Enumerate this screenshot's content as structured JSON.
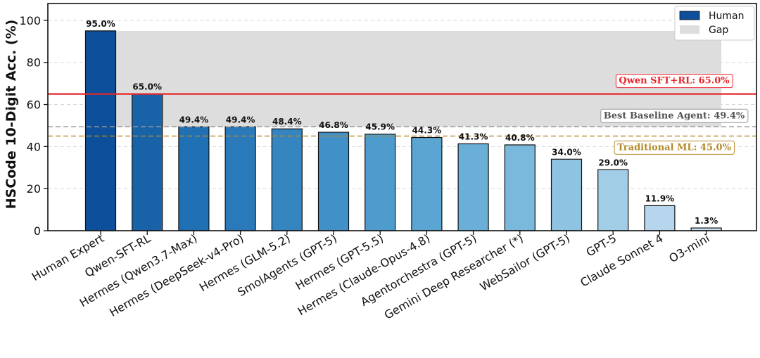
{
  "chart_data": {
    "type": "bar",
    "ylabel": "HSCode 10-Digit Acc. (%)",
    "xlabel": "",
    "ylim": [
      0,
      108
    ],
    "yticks": [
      0,
      20,
      40,
      60,
      80,
      100
    ],
    "grid": "horizontal dashed",
    "categories": [
      "Human Expert",
      "Qwen-SFT-RL",
      "Hermes (Qwen3.7-Max)",
      "Hermes (DeepSeek-v4-Pro)",
      "Hermes (GLM-5.2)",
      "SmolAgents (GPT-5)",
      "Hermes (GPT-5.5)",
      "Hermes (Claude-Opus-4.8)",
      "Agentorchestra (GPT-5)",
      "Gemini Deep Researcher (*)",
      "WebSailor (GPT-5)",
      "GPT-5",
      "Claude Sonnet 4",
      "O3-mini"
    ],
    "values": [
      95.0,
      65.0,
      49.4,
      49.4,
      48.4,
      46.8,
      45.9,
      44.3,
      41.3,
      40.8,
      34.0,
      29.0,
      11.9,
      1.3
    ],
    "value_labels": [
      "95.0%",
      "65.0%",
      "49.4%",
      "49.4%",
      "48.4%",
      "46.8%",
      "45.9%",
      "44.3%",
      "41.3%",
      "40.8%",
      "34.0%",
      "29.0%",
      "11.9%",
      "1.3%"
    ],
    "bar_colors": [
      "#0d4f9a",
      "#1862a8",
      "#2070b4",
      "#2a79ba",
      "#3585c1",
      "#4190c7",
      "#4e9ccd",
      "#5ba5d2",
      "#69afd7",
      "#7ab8dc",
      "#8fc3e2",
      "#a2cde7",
      "#b5d6ec",
      "#c8e0f1"
    ],
    "gap_band": {
      "from": 49.4,
      "to": 95.0,
      "color": "#dddddd"
    },
    "reference_lines": [
      {
        "value": 65.0,
        "label": "Qwen SFT+RL: 65.0%",
        "color": "#e8262a",
        "style": "solid"
      },
      {
        "value": 49.4,
        "label": "Best Baseline Agent: 49.4%",
        "color": "#9a9a9a",
        "style": "dashed"
      },
      {
        "value": 45.0,
        "label": "Traditional ML: 45.0%",
        "color": "#b58a2a",
        "style": "dashed"
      }
    ],
    "legend": {
      "placement": "top-right",
      "entries": [
        {
          "label": "Human",
          "color": "#0d4f9a"
        },
        {
          "label": "Gap",
          "color": "#dddddd"
        }
      ]
    }
  }
}
